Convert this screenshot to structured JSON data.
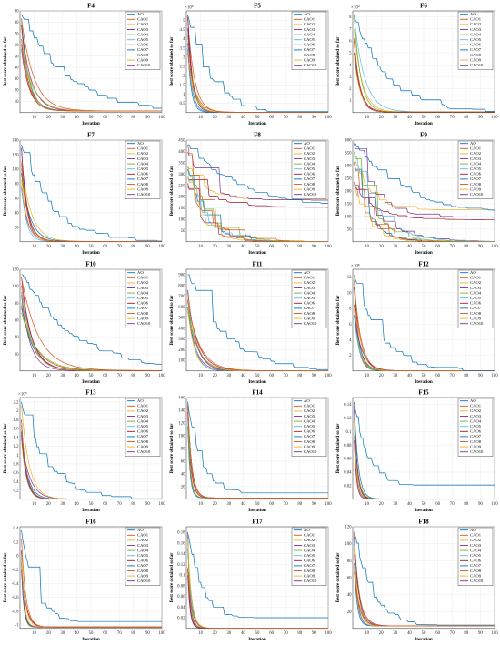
{
  "legend_labels": [
    "AO",
    "CAO1",
    "CAO2",
    "CAO3",
    "CAO4",
    "CAO5",
    "CAO6",
    "CAO7",
    "CAO8",
    "CAO9",
    "CAO10"
  ],
  "series_colors": [
    "#0072BD",
    "#D95319",
    "#EDB120",
    "#7E2F8E",
    "#77AC30",
    "#4DBEEE",
    "#A2142F",
    "#0072BD",
    "#D95319",
    "#EDB120",
    "#7E2F8E"
  ],
  "xlabel": "Iteration",
  "ylabel": "Best score obtained so far",
  "chart_data": [
    {
      "type": "line",
      "title": "F4",
      "xlim": [
        0,
        100
      ],
      "ylim": [
        0,
        90
      ],
      "yticks": [
        10,
        20,
        30,
        40,
        50,
        60,
        70,
        80,
        90
      ],
      "yticks_labels": [
        "10",
        "20",
        "30",
        "40",
        "50",
        "60",
        "70",
        "80",
        "90"
      ],
      "exponent": "",
      "kind": "decay",
      "start": 88,
      "final": 1.5,
      "ao_tail": 2,
      "rate": 0.06
    },
    {
      "type": "line",
      "title": "F5",
      "xlim": [
        0,
        100
      ],
      "ylim": [
        0,
        5.5
      ],
      "yticks": [
        0.5,
        1,
        1.5,
        2,
        2.5,
        3,
        3.5,
        4,
        4.5,
        5
      ],
      "yticks_labels": [
        "0.5",
        "1",
        "1.5",
        "2",
        "2.5",
        "3",
        "3.5",
        "4",
        "4.5",
        "5"
      ],
      "exponent": "×10⁸",
      "kind": "decay",
      "start": 5.3,
      "final": 0.02,
      "ao_tail": 0.05,
      "rate": 0.12
    },
    {
      "type": "line",
      "title": "F6",
      "xlim": [
        0,
        100
      ],
      "ylim": [
        0,
        8.5
      ],
      "yticks": [
        1,
        2,
        3,
        4,
        5,
        6,
        7,
        8
      ],
      "yticks_labels": [
        "1",
        "2",
        "3",
        "4",
        "5",
        "6",
        "7",
        "8"
      ],
      "exponent": "×10⁴",
      "kind": "decay",
      "start": 8.2,
      "final": 0.05,
      "ao_tail": 0.1,
      "rate": 0.08
    },
    {
      "type": "line",
      "title": "F7",
      "xlim": [
        0,
        100
      ],
      "ylim": [
        0,
        140
      ],
      "yticks": [
        20,
        40,
        60,
        80,
        100,
        120,
        140
      ],
      "yticks_labels": [
        "20",
        "40",
        "60",
        "80",
        "100",
        "120",
        "140"
      ],
      "exponent": "",
      "kind": "decay",
      "start": 135,
      "final": 0.5,
      "ao_tail": 1,
      "rate": 0.09
    },
    {
      "type": "line",
      "title": "F8",
      "xlim": [
        0,
        100
      ],
      "ylim": [
        0,
        450
      ],
      "yticks": [
        50,
        100,
        150,
        200,
        250,
        300,
        350,
        400,
        450
      ],
      "yticks_labels": [
        "50",
        "100",
        "150",
        "200",
        "250",
        "300",
        "350",
        "400",
        "450"
      ],
      "exponent": "",
      "kind": "stairs",
      "start": 430,
      "final": 0,
      "ao_tail": 150,
      "rate": 0.05
    },
    {
      "type": "line",
      "title": "F9",
      "xlim": [
        0,
        100
      ],
      "ylim": [
        0,
        400
      ],
      "yticks": [
        50,
        100,
        150,
        200,
        250,
        300,
        350,
        400
      ],
      "yticks_labels": [
        "50",
        "100",
        "150",
        "200",
        "250",
        "300",
        "350",
        "400"
      ],
      "exponent": "",
      "kind": "stairs",
      "start": 390,
      "final": 0,
      "ao_tail": 100,
      "rate": 0.05
    },
    {
      "type": "line",
      "title": "F10",
      "xlim": [
        0,
        100
      ],
      "ylim": [
        0,
        120
      ],
      "yticks": [
        20,
        40,
        60,
        80,
        100,
        120
      ],
      "yticks_labels": [
        "20",
        "40",
        "60",
        "80",
        "100",
        "120"
      ],
      "exponent": "",
      "kind": "decay",
      "start": 115,
      "final": 0.5,
      "ao_tail": 1,
      "rate": 0.05
    },
    {
      "type": "line",
      "title": "F11",
      "xlim": [
        0,
        100
      ],
      "ylim": [
        0,
        950
      ],
      "yticks": [
        100,
        200,
        300,
        400,
        500,
        600,
        700,
        800,
        900
      ],
      "yticks_labels": [
        "100",
        "200",
        "300",
        "400",
        "500",
        "600",
        "700",
        "800",
        "900"
      ],
      "exponent": "",
      "kind": "decay",
      "start": 920,
      "final": 2,
      "ao_tail": 5,
      "rate": 0.07
    },
    {
      "type": "line",
      "title": "F12",
      "xlim": [
        0,
        100
      ],
      "ylim": [
        0,
        13
      ],
      "yticks": [
        2,
        4,
        6,
        8,
        10,
        12
      ],
      "yticks_labels": [
        "2",
        "4",
        "6",
        "8",
        "10",
        "12"
      ],
      "exponent": "×10⁸",
      "kind": "decay",
      "start": 12.5,
      "final": 0.02,
      "ao_tail": 0.05,
      "rate": 0.1
    },
    {
      "type": "line",
      "title": "F13",
      "xlim": [
        0,
        100
      ],
      "ylim": [
        0,
        2.3
      ],
      "yticks": [
        0.2,
        0.4,
        0.6,
        0.8,
        1,
        1.2,
        1.4,
        1.6,
        1.8,
        2,
        2.2
      ],
      "yticks_labels": [
        "0.2",
        "0.4",
        "0.6",
        "0.8",
        "1",
        "1.2",
        "1.4",
        "1.6",
        "1.8",
        "2",
        "2.2"
      ],
      "exponent": "×10⁹",
      "kind": "decay",
      "start": 2.2,
      "final": 0.005,
      "ao_tail": 0.01,
      "rate": 0.1
    },
    {
      "type": "line",
      "title": "F14",
      "xlim": [
        0,
        100
      ],
      "ylim": [
        0,
        160
      ],
      "yticks": [
        20,
        40,
        60,
        80,
        100,
        120,
        140,
        160
      ],
      "yticks_labels": [
        "20",
        "40",
        "60",
        "80",
        "100",
        "120",
        "140",
        "160"
      ],
      "exponent": "",
      "kind": "plateau",
      "start": 155,
      "final": 2,
      "ao_tail": 10,
      "rate": 0.2
    },
    {
      "type": "line",
      "title": "F15",
      "xlim": [
        0,
        100
      ],
      "ylim": [
        0,
        0.15
      ],
      "yticks": [
        0.02,
        0.04,
        0.06,
        0.08,
        0.1,
        0.12,
        0.14
      ],
      "yticks_labels": [
        "0.02",
        "0.04",
        "0.06",
        "0.08",
        "0.1",
        "0.12",
        "0.14"
      ],
      "exponent": "",
      "kind": "plateau",
      "start": 0.145,
      "final": 0.0005,
      "ao_tail": 0.021,
      "rate": 0.2
    },
    {
      "type": "line",
      "title": "F16",
      "xlim": [
        0,
        100
      ],
      "ylim": [
        -1.05,
        0.42
      ],
      "yticks": [
        -1,
        -0.8,
        -0.6,
        -0.4,
        -0.2,
        0,
        0.2,
        0.4
      ],
      "yticks_labels": [
        "-1",
        "-0.8",
        "-0.6",
        "-0.4",
        "-0.2",
        "0",
        "0.2",
        "0.4"
      ],
      "exponent": "",
      "kind": "plateau",
      "start": 0.38,
      "final": -1.03,
      "ao_tail": -0.95,
      "rate": 0.2
    },
    {
      "type": "line",
      "title": "F17",
      "xlim": [
        0,
        100
      ],
      "ylim": [
        0,
        0.19
      ],
      "yticks": [
        0.02,
        0.04,
        0.06,
        0.08,
        0.1,
        0.12,
        0.14,
        0.16,
        0.18
      ],
      "yticks_labels": [
        "0.02",
        "0.04",
        "0.06",
        "0.08",
        "0.1",
        "0.12",
        "0.14",
        "0.16",
        "0.18"
      ],
      "exponent": "",
      "kind": "plateau",
      "start": 0.18,
      "final": 0.0005,
      "ao_tail": 0.02,
      "rate": 0.2
    },
    {
      "type": "line",
      "title": "F18",
      "xlim": [
        0,
        100
      ],
      "ylim": [
        0,
        120
      ],
      "yticks": [
        20,
        40,
        60,
        80,
        100,
        120
      ],
      "yticks_labels": [
        "20",
        "40",
        "60",
        "80",
        "100",
        "120"
      ],
      "exponent": "",
      "kind": "plateau",
      "start": 115,
      "final": 3,
      "ao_tail": 4,
      "rate": 0.15
    }
  ]
}
